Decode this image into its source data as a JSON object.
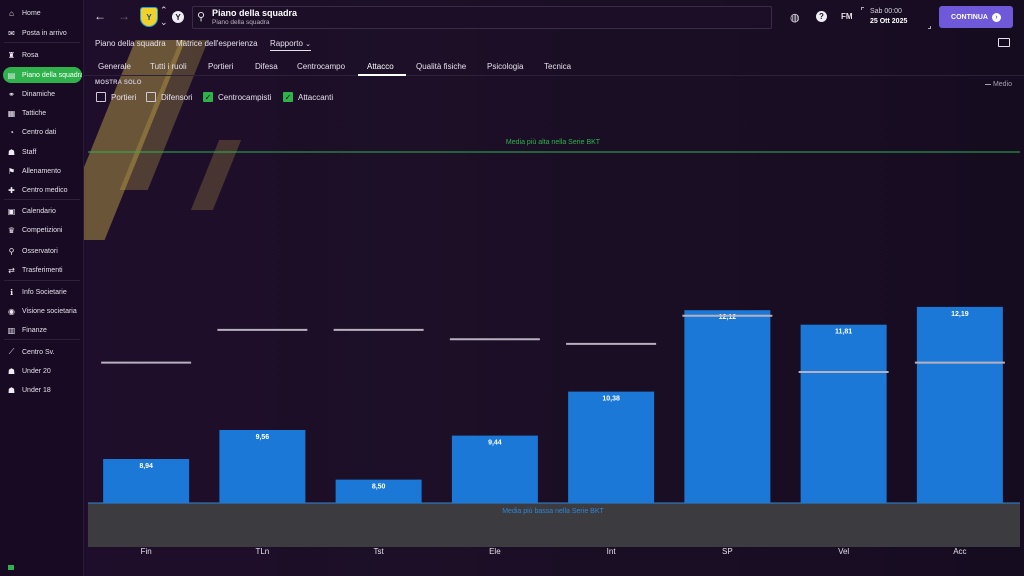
{
  "sidebar": {
    "items": [
      {
        "label": "Home",
        "icon": "home-icon",
        "glyph": "⌂"
      },
      {
        "label": "Posta in arrivo",
        "icon": "mail-icon",
        "glyph": "✉"
      },
      {
        "label": "Rosa",
        "icon": "shirt-icon",
        "glyph": "♜"
      },
      {
        "label": "Piano della squadra",
        "icon": "clipboard-icon",
        "glyph": "▤",
        "active": true
      },
      {
        "label": "Dinamiche",
        "icon": "handshake-icon",
        "glyph": "⚭"
      },
      {
        "label": "Tattiche",
        "icon": "tactics-board-icon",
        "glyph": "▦"
      },
      {
        "label": "Centro dati",
        "icon": "data-circle-icon",
        "glyph": "◔"
      },
      {
        "label": "Staff",
        "icon": "staff-people-icon",
        "glyph": "☗"
      },
      {
        "label": "Allenamento",
        "icon": "training-icon",
        "glyph": "⚑"
      },
      {
        "label": "Centro medico",
        "icon": "medical-cross-icon",
        "glyph": "✚"
      },
      {
        "label": "Calendario",
        "icon": "calendar-icon",
        "glyph": "▣"
      },
      {
        "label": "Competizioni",
        "icon": "trophy-icon",
        "glyph": "♛"
      },
      {
        "label": "Osservatori",
        "icon": "magnifier-icon",
        "glyph": "⚲"
      },
      {
        "label": "Trasferimenti",
        "icon": "transfers-icon",
        "glyph": "⇄"
      },
      {
        "label": "Info Societarie",
        "icon": "info-icon",
        "glyph": "ℹ"
      },
      {
        "label": "Visione societaria",
        "icon": "vision-icon",
        "glyph": "◉"
      },
      {
        "label": "Finanze",
        "icon": "finance-icon",
        "glyph": "▥"
      },
      {
        "label": "Centro Sv.",
        "icon": "development-icon",
        "glyph": "⟋"
      },
      {
        "label": "Under 20",
        "icon": "youth-team-icon",
        "glyph": "☗"
      },
      {
        "label": "Under 18",
        "icon": "youth-team-icon",
        "glyph": "☗"
      }
    ]
  },
  "header": {
    "title": "Piano della squadra",
    "subtitle": "Piano della squadra",
    "date_time": "Sab 00:00",
    "date": "25 Ott 2025",
    "continue_label": "CONTINUA",
    "fm_label": "FM",
    "club_badge_letter": "Y"
  },
  "subnav": {
    "items": [
      "Piano della squadra",
      "Matrice dell'esperienza",
      "Rapporto"
    ],
    "active": "Rapporto",
    "dropdown_glyph": "⌄"
  },
  "tabs": {
    "items": [
      "Generale",
      "Tutti i ruoli",
      "Portieri",
      "Difesa",
      "Centrocampo",
      "Attacco",
      "Qualità fisiche",
      "Psicologia",
      "Tecnica"
    ],
    "active": "Attacco"
  },
  "filters": {
    "label": "MOSTRA SOLO",
    "options": [
      {
        "label": "Portieri",
        "checked": false
      },
      {
        "label": "Difensori",
        "checked": false
      },
      {
        "label": "Centrocampisti",
        "checked": true
      },
      {
        "label": "Attaccanti",
        "checked": true
      }
    ]
  },
  "colors": {
    "accent_green": "#2fb24c",
    "bar_blue": "#1b78d6",
    "continue_purple": "#6f59d8",
    "average_line": "#b8b0be",
    "high_line": "#2fb24c",
    "low_line": "#2f86d6"
  },
  "chart_data": {
    "type": "bar",
    "categories": [
      "Fin",
      "TLn",
      "Tst",
      "Ele",
      "Int",
      "SP",
      "Vel",
      "Acc"
    ],
    "values": [
      8.94,
      9.56,
      8.5,
      9.44,
      10.38,
      12.12,
      11.81,
      12.19
    ],
    "value_labels": [
      "8,94",
      "9,56",
      "8,50",
      "9,44",
      "10,38",
      "12,12",
      "11,81",
      "12,19"
    ],
    "average_values": [
      11.0,
      11.7,
      11.7,
      11.5,
      11.4,
      12.0,
      10.8,
      11.0
    ],
    "series_legend": "Medio",
    "max_line_label": "Media più alta nella Serie BKT",
    "min_line_label": "Media più bassa nella Serie BKT",
    "ylim": [
      8.0,
      15.5
    ],
    "grid": false
  }
}
